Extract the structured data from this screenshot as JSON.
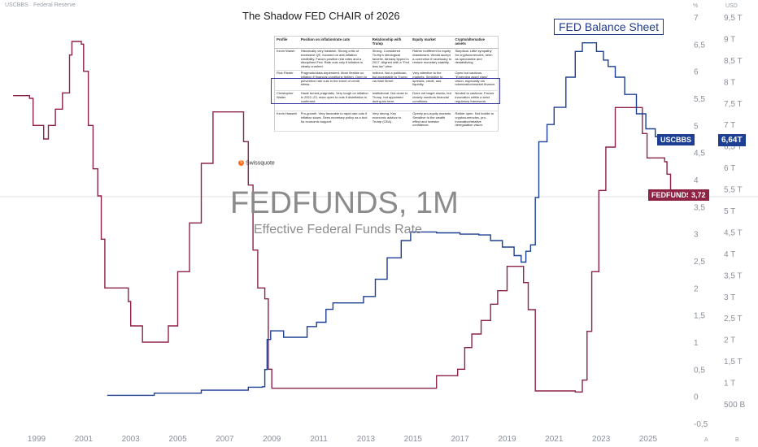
{
  "symbol_label": "USCBBS · Federal Reserve",
  "top_right": {
    "pct": "%",
    "usd": "USD"
  },
  "bottom_right": {
    "a": "A",
    "b": "B"
  },
  "title": "The Shadow FED CHAIR of 2026",
  "balance_sheet_label": "FED Balance Sheet",
  "watermark": {
    "title": "FEDFUNDS, 1M",
    "subtitle": "Effective Federal Funds Rate"
  },
  "swissquote": "Swissquote",
  "table": {
    "headers": [
      "Profile",
      "Position on inflation/rate cuts",
      "Relationship with Trump",
      "Equity market",
      "Crypto/alternative assets"
    ],
    "rows": [
      [
        "Kevin Warsh",
        "Historically very hawkish. Strong critic of excessive QE, focused on anti-inflation credibility. Favors positive real rates and a disciplined Fed. Rate cuts only if inflation is clearly crushed.",
        "Strong. Considered Trump's ideological favorite. Already tipped in 2017. Aligned with a \"Fed less lax\" view.",
        "Rather indifferent to equity drawdowns. Would accept a correction if necessary to restore monetary stability.",
        "Skeptical. Little sympathy for cryptocurrencies, seen as speculative and destabilizing."
      ],
      [
        "Rick Rieder",
        "Pragmatic/data-dependent. More flexible on inflation if financial conditions tighten. Open to preventive rate cuts in the event of credit stress.",
        "Indirect. Not a politician, but acceptable to Trump via Wall Street.",
        "Very attentive to the markets. Sensitive to spreads, credit, and liquidity.",
        "Open but cautious. \"Emerging asset class\" vision, especially via tokenization/market finance."
      ],
      [
        "Christopher Waller",
        "Hawk turned pragmatic. Very tough on inflation in 2022–23, more open to cuts if disinflation is confirmed.",
        "Institutional. Not close to Trump, but appointed during his term.",
        "Does not target stocks, but closely monitors financial conditions.",
        "Neutral to cautious. Favors innovation within a strict regulatory framework."
      ],
      [
        "Kevin Hassett",
        "Pro-growth. Very favorable to rapid rate cuts if inflation slows. Sees monetary policy as a tool for economic support.",
        "Very strong. Key economic advisor to Trump (CEA).",
        "Openly pro-equity markets. Sensitive to the wealth effect and investor confidence.",
        "Rather open. Not hostile to cryptocurrencies, pro-innovation/relative deregulation vision."
      ]
    ]
  },
  "chart_data": {
    "type": "line",
    "xlabel": "",
    "ylabel": "",
    "x_ticks": [
      "1999",
      "2001",
      "2003",
      "2005",
      "2007",
      "2009",
      "2011",
      "2013",
      "2015",
      "2017",
      "2019",
      "2021",
      "2023",
      "2025"
    ],
    "x_range": [
      1998.0,
      2026.4
    ],
    "y_left": {
      "ticks": [
        "7",
        "6,5",
        "6",
        "5,5",
        "5",
        "4,5",
        "4",
        "3,5",
        "3",
        "2,5",
        "2",
        "1,5",
        "1",
        "0,5",
        "0",
        "-0,5"
      ],
      "range": [
        -0.5,
        7
      ]
    },
    "y_right": {
      "ticks": [
        "9,5 T",
        "9 T",
        "8,5 T",
        "8 T",
        "7,5 T",
        "7 T",
        "6,5 T",
        "6 T",
        "5,5 T",
        "5 T",
        "4,5 T",
        "4 T",
        "3,5 T",
        "3 T",
        "2,5 T",
        "2 T",
        "1,5 T",
        "1 T",
        "500 B"
      ],
      "range_trillions": [
        0.5,
        9.5
      ]
    },
    "series": [
      {
        "name": "FEDFUNDS",
        "color": "#8e2344",
        "axis": "left",
        "last_label": "3,72",
        "points": [
          [
            1998.0,
            5.55
          ],
          [
            1998.7,
            5.5
          ],
          [
            1998.85,
            5.0
          ],
          [
            1999.3,
            4.75
          ],
          [
            1999.5,
            5.0
          ],
          [
            1999.8,
            5.3
          ],
          [
            2000.1,
            5.6
          ],
          [
            2000.4,
            6.3
          ],
          [
            2000.5,
            6.55
          ],
          [
            2000.9,
            6.5
          ],
          [
            2001.0,
            6.0
          ],
          [
            2001.2,
            5.0
          ],
          [
            2001.4,
            4.2
          ],
          [
            2001.6,
            3.7
          ],
          [
            2001.75,
            2.9
          ],
          [
            2001.9,
            2.0
          ],
          [
            2002.9,
            1.75
          ],
          [
            2003.0,
            1.3
          ],
          [
            2003.5,
            1.0
          ],
          [
            2004.5,
            1.0
          ],
          [
            2004.6,
            1.3
          ],
          [
            2005.0,
            2.3
          ],
          [
            2005.5,
            3.2
          ],
          [
            2006.0,
            4.3
          ],
          [
            2006.5,
            5.25
          ],
          [
            2007.6,
            5.25
          ],
          [
            2007.8,
            4.7
          ],
          [
            2008.0,
            3.9
          ],
          [
            2008.2,
            2.7
          ],
          [
            2008.4,
            2.0
          ],
          [
            2008.7,
            1.8
          ],
          [
            2008.85,
            0.5
          ],
          [
            2009.0,
            0.15
          ],
          [
            2015.9,
            0.15
          ],
          [
            2016.0,
            0.38
          ],
          [
            2016.9,
            0.5
          ],
          [
            2017.2,
            0.9
          ],
          [
            2017.5,
            1.15
          ],
          [
            2017.9,
            1.4
          ],
          [
            2018.3,
            1.7
          ],
          [
            2018.6,
            1.95
          ],
          [
            2019.0,
            2.4
          ],
          [
            2019.5,
            2.4
          ],
          [
            2019.7,
            2.1
          ],
          [
            2019.9,
            1.6
          ],
          [
            2020.2,
            0.1
          ],
          [
            2021.9,
            0.08
          ],
          [
            2022.2,
            0.3
          ],
          [
            2022.4,
            1.2
          ],
          [
            2022.6,
            2.3
          ],
          [
            2022.9,
            3.8
          ],
          [
            2023.2,
            4.6
          ],
          [
            2023.6,
            5.33
          ],
          [
            2024.6,
            5.33
          ],
          [
            2024.75,
            4.85
          ],
          [
            2024.95,
            4.4
          ],
          [
            2025.7,
            4.33
          ],
          [
            2025.8,
            4.1
          ],
          [
            2025.95,
            3.72
          ]
        ]
      },
      {
        "name": "USCBBS",
        "color": "#1c3f94",
        "axis": "right",
        "last_label": "6,64T",
        "points": [
          [
            2002.0,
            0.7
          ],
          [
            2004.0,
            0.75
          ],
          [
            2006.0,
            0.82
          ],
          [
            2008.0,
            0.89
          ],
          [
            2008.6,
            0.9
          ],
          [
            2008.7,
            1.3
          ],
          [
            2008.8,
            2.0
          ],
          [
            2008.95,
            2.2
          ],
          [
            2009.5,
            2.05
          ],
          [
            2010.5,
            2.3
          ],
          [
            2010.9,
            2.4
          ],
          [
            2011.3,
            2.7
          ],
          [
            2011.6,
            2.85
          ],
          [
            2012.5,
            2.85
          ],
          [
            2012.9,
            3.0
          ],
          [
            2013.4,
            3.4
          ],
          [
            2013.9,
            3.9
          ],
          [
            2014.5,
            4.3
          ],
          [
            2014.9,
            4.5
          ],
          [
            2016.0,
            4.48
          ],
          [
            2017.0,
            4.45
          ],
          [
            2017.8,
            4.43
          ],
          [
            2018.3,
            4.3
          ],
          [
            2018.8,
            4.15
          ],
          [
            2019.3,
            3.95
          ],
          [
            2019.6,
            3.8
          ],
          [
            2019.8,
            4.05
          ],
          [
            2020.0,
            4.2
          ],
          [
            2020.2,
            5.3
          ],
          [
            2020.35,
            6.6
          ],
          [
            2020.7,
            7.0
          ],
          [
            2021.0,
            7.4
          ],
          [
            2021.5,
            8.1
          ],
          [
            2021.9,
            8.7
          ],
          [
            2022.2,
            8.9
          ],
          [
            2022.5,
            8.9
          ],
          [
            2022.8,
            8.7
          ],
          [
            2023.1,
            8.5
          ],
          [
            2023.3,
            8.35
          ],
          [
            2023.6,
            8.1
          ],
          [
            2024.0,
            7.7
          ],
          [
            2024.5,
            7.25
          ],
          [
            2024.9,
            6.9
          ],
          [
            2025.3,
            6.72
          ],
          [
            2025.95,
            6.64
          ]
        ]
      }
    ]
  }
}
